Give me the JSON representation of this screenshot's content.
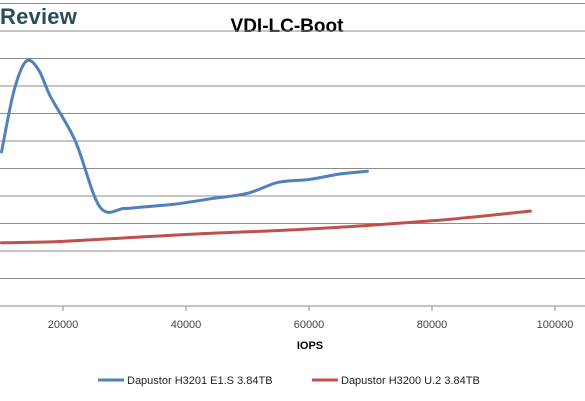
{
  "brand": "Review",
  "chart_data": {
    "type": "line",
    "title": "VDI-LC-Boot",
    "xlabel": "IOPS",
    "ylabel": "",
    "xlim": [
      10000,
      100000
    ],
    "ylim": [
      0,
      11
    ],
    "x_ticks": [
      "20000",
      "40000",
      "60000",
      "80000",
      "100000"
    ],
    "x_tick_values": [
      20000,
      40000,
      60000,
      80000,
      100000
    ],
    "grid": "horizontal",
    "y_gridlines": [
      1,
      2,
      3,
      4,
      5,
      6,
      7,
      8,
      9,
      10,
      11
    ],
    "legend_position": "bottom",
    "series": [
      {
        "name": "Dapustor H3201 E1.S 3.84TB",
        "color": "#4f81bd",
        "points": [
          [
            10000,
            5.6
          ],
          [
            12000,
            7.8
          ],
          [
            14000,
            8.9
          ],
          [
            16000,
            8.6
          ],
          [
            18000,
            7.6
          ],
          [
            22000,
            6.0
          ],
          [
            26000,
            3.6
          ],
          [
            30000,
            3.55
          ],
          [
            33000,
            3.6
          ],
          [
            38000,
            3.7
          ],
          [
            44000,
            3.9
          ],
          [
            50000,
            4.1
          ],
          [
            55000,
            4.5
          ],
          [
            60000,
            4.6
          ],
          [
            65000,
            4.8
          ],
          [
            69500,
            4.9
          ]
        ]
      },
      {
        "name": "Dapustor H3200 U.2 3.84TB",
        "color": "#c0504d",
        "points": [
          [
            10000,
            2.3
          ],
          [
            20000,
            2.35
          ],
          [
            40000,
            2.6
          ],
          [
            60000,
            2.8
          ],
          [
            80000,
            3.1
          ],
          [
            96000,
            3.45
          ]
        ]
      }
    ]
  }
}
